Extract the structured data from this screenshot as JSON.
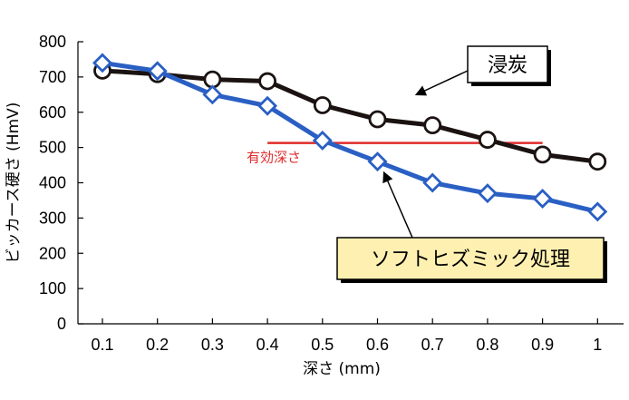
{
  "chart_data": {
    "type": "line",
    "title": "",
    "xlabel": "深さ (mm)",
    "ylabel": "ビッカース硬さ (HmV)",
    "x": [
      0.1,
      0.2,
      0.3,
      0.4,
      0.5,
      0.6,
      0.7,
      0.8,
      0.9,
      1
    ],
    "x_tick_labels": [
      "0.1",
      "0.2",
      "0.3",
      "0.4",
      "0.5",
      "0.6",
      "0.7",
      "0.8",
      "0.9",
      "1"
    ],
    "ylim": [
      0,
      800
    ],
    "y_ticks": [
      0,
      100,
      200,
      300,
      400,
      500,
      600,
      700,
      800
    ],
    "y_tick_labels": [
      "0",
      "100",
      "200",
      "300",
      "400",
      "500",
      "600",
      "700",
      "800"
    ],
    "grid": false,
    "series": [
      {
        "name": "浸炭",
        "marker": "circle",
        "color": "#1a1311",
        "values": [
          718,
          708,
          693,
          688,
          620,
          580,
          563,
          522,
          480,
          460
        ]
      },
      {
        "name": "ソフトヒズミック処理",
        "marker": "diamond",
        "color": "#2a5fc4",
        "values": [
          740,
          717,
          650,
          618,
          520,
          460,
          400,
          370,
          355,
          318
        ]
      }
    ],
    "reference_line": {
      "label": "有効深さ",
      "value": 513,
      "x_range": [
        0.4,
        0.9
      ],
      "color": "#e02b2b"
    },
    "callouts": [
      {
        "series": "浸炭",
        "text": "浸炭",
        "box_color": "#ffffff"
      },
      {
        "series": "ソフトヒズミック処理",
        "text": "ソフトヒズミック処理",
        "box_color": "#fdf0b0"
      }
    ]
  }
}
